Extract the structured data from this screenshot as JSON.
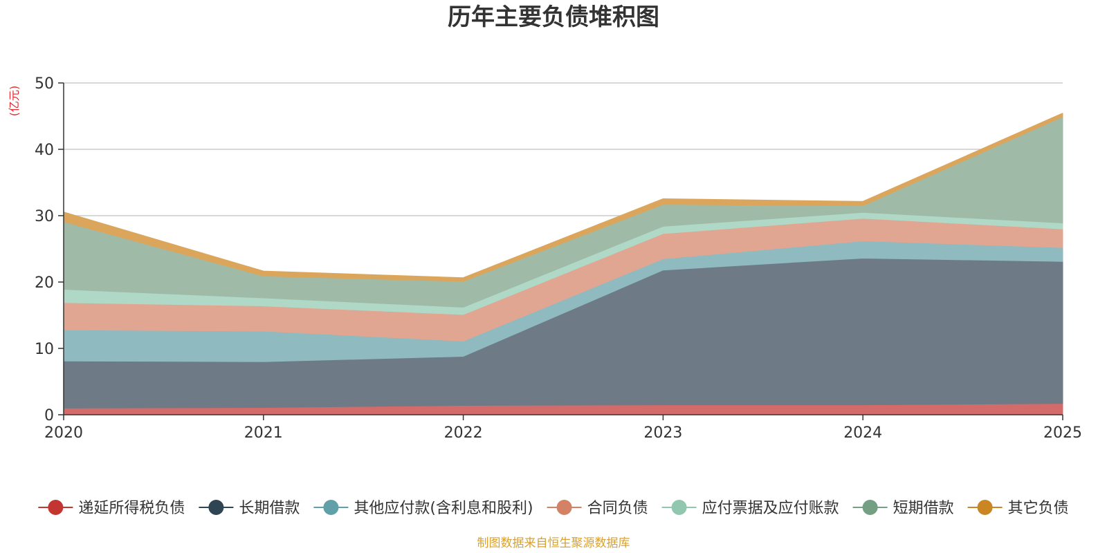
{
  "chart_data": {
    "type": "area",
    "stacked": true,
    "title": "历年主要负债堆积图",
    "ylabel": "(亿元)",
    "xlabel": "",
    "ylim": [
      0,
      50
    ],
    "yticks": [
      0,
      10,
      20,
      30,
      40,
      50
    ],
    "categories": [
      "2020",
      "2021",
      "2022",
      "2023",
      "2024",
      "2025"
    ],
    "grid": true,
    "legend_position": "bottom",
    "source": "制图数据来自恒生聚源数据库",
    "series": [
      {
        "name": "递延所得税负债",
        "color": "#c23531",
        "fill": "#d46b6b",
        "values": [
          1.0,
          1.1,
          1.4,
          1.5,
          1.5,
          1.7
        ]
      },
      {
        "name": "长期借款",
        "color": "#2f4554",
        "fill": "#6e7a85",
        "values": [
          7.1,
          6.9,
          7.4,
          20.3,
          22.1,
          21.4
        ]
      },
      {
        "name": "其他应付款(含利息和股利)",
        "color": "#61a0a8",
        "fill": "#8fbac0",
        "values": [
          4.7,
          4.6,
          2.3,
          1.7,
          2.6,
          2.1
        ]
      },
      {
        "name": "合同负债",
        "color": "#d48265",
        "fill": "#e0a692",
        "values": [
          4.1,
          3.8,
          4.0,
          3.8,
          3.4,
          2.8
        ]
      },
      {
        "name": "应付票据及应付账款",
        "color": "#91c7ae",
        "fill": "#b0d8c6",
        "values": [
          2.0,
          1.2,
          1.1,
          1.1,
          0.9,
          0.9
        ]
      },
      {
        "name": "短期借款",
        "color": "#749f83",
        "fill": "#9fbba8",
        "values": [
          10.2,
          3.3,
          3.9,
          3.3,
          1.0,
          16.0
        ]
      },
      {
        "name": "其它负债",
        "color": "#ca8622",
        "fill": "#dba65c",
        "values": [
          1.4,
          0.7,
          0.5,
          0.8,
          0.6,
          0.5
        ]
      }
    ]
  }
}
